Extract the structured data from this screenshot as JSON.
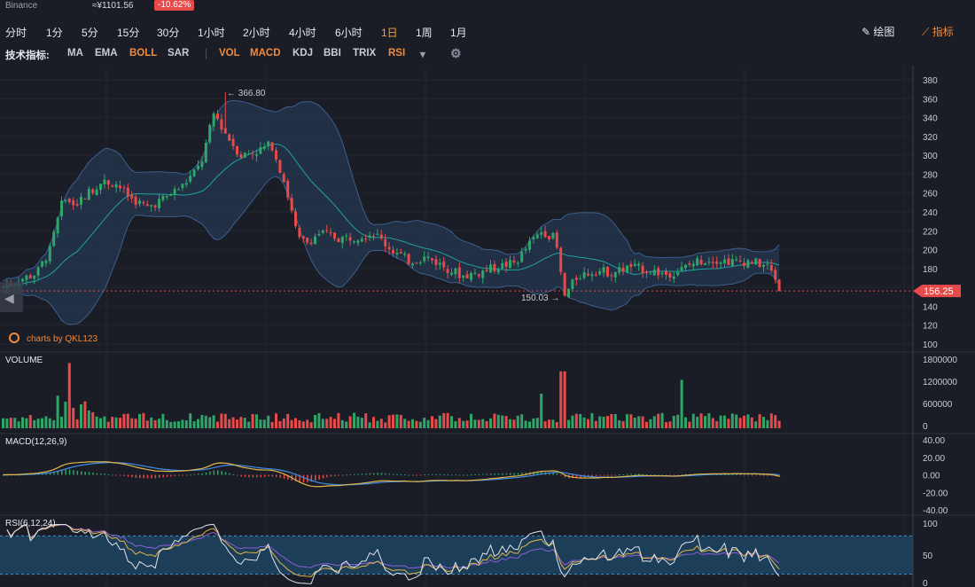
{
  "header": {
    "exchange": "Binance",
    "price": "≈¥1101.56",
    "change": "-10.62%"
  },
  "timeframes": [
    {
      "label": "分时"
    },
    {
      "label": "1分"
    },
    {
      "label": "5分"
    },
    {
      "label": "15分"
    },
    {
      "label": "30分"
    },
    {
      "label": "1小时"
    },
    {
      "label": "2小时"
    },
    {
      "label": "4小时"
    },
    {
      "label": "6小时"
    },
    {
      "label": "1日",
      "active": true
    },
    {
      "label": "1周"
    },
    {
      "label": "1月"
    }
  ],
  "tools": {
    "draw": "绘图",
    "indicators": "指标"
  },
  "indicator_bar": {
    "label": "技术指标:",
    "main": [
      {
        "label": "MA"
      },
      {
        "label": "EMA"
      },
      {
        "label": "BOLL",
        "on": true
      },
      {
        "label": "SAR"
      }
    ],
    "sub": [
      {
        "label": "VOL",
        "on": true
      },
      {
        "label": "MACD",
        "on": true
      },
      {
        "label": "KDJ"
      },
      {
        "label": "BBI"
      },
      {
        "label": "TRIX"
      },
      {
        "label": "RSI",
        "on": true
      }
    ]
  },
  "colors": {
    "up": "#2fa56a",
    "down": "#e84a4a",
    "boll_fill": "#27405f",
    "boll_mid": "#1fa3a3",
    "macd_dif": "#e2b54a",
    "macd_dea": "#3e8ee8",
    "rsi6": "#dfe3ea",
    "rsi12": "#e2b54a",
    "rsi24": "#8a5fd8"
  },
  "panels": {
    "main_axis": [
      "380",
      "360",
      "340",
      "320",
      "300",
      "280",
      "260",
      "240",
      "220",
      "200",
      "180",
      "160",
      "140",
      "120",
      "100"
    ],
    "high_label": "366.80",
    "low_label": "150.03",
    "last_price": "156.25",
    "watermark": "charts by QKL123",
    "volume_title": "VOLUME",
    "volume_axis": [
      "1800000",
      "1200000",
      "600000",
      "0"
    ],
    "macd_title": "MACD(12,26,9)",
    "macd_axis": [
      "40.00",
      "20.00",
      "0.00",
      "-20.00",
      "-40.00"
    ],
    "rsi_title": "RSI(6,12,24)",
    "rsi_axis": [
      "100",
      "50",
      "0"
    ]
  },
  "chart_data": {
    "type": "candlestick",
    "y_range": [
      100,
      380
    ],
    "high": 366.8,
    "low": 150.03,
    "last": 156.25,
    "close_path_keypoints": [
      [
        0,
        160
      ],
      [
        20,
        168
      ],
      [
        40,
        175
      ],
      [
        55,
        200
      ],
      [
        70,
        255
      ],
      [
        85,
        250
      ],
      [
        100,
        262
      ],
      [
        115,
        272
      ],
      [
        130,
        270
      ],
      [
        145,
        255
      ],
      [
        165,
        245
      ],
      [
        185,
        255
      ],
      [
        205,
        268
      ],
      [
        225,
        290
      ],
      [
        240,
        345
      ],
      [
        255,
        320
      ],
      [
        270,
        300
      ],
      [
        290,
        305
      ],
      [
        305,
        312
      ],
      [
        320,
        270
      ],
      [
        335,
        210
      ],
      [
        345,
        208
      ],
      [
        360,
        218
      ],
      [
        380,
        212
      ],
      [
        400,
        214
      ],
      [
        420,
        218
      ],
      [
        440,
        200
      ],
      [
        460,
        188
      ],
      [
        480,
        192
      ],
      [
        500,
        182
      ],
      [
        520,
        172
      ],
      [
        540,
        176
      ],
      [
        560,
        182
      ],
      [
        580,
        186
      ],
      [
        595,
        205
      ],
      [
        610,
        220
      ],
      [
        625,
        212
      ],
      [
        635,
        150
      ],
      [
        650,
        172
      ],
      [
        670,
        178
      ],
      [
        690,
        176
      ],
      [
        710,
        182
      ],
      [
        730,
        178
      ],
      [
        750,
        174
      ],
      [
        765,
        178
      ],
      [
        785,
        188
      ],
      [
        805,
        190
      ],
      [
        825,
        187
      ],
      [
        845,
        188
      ],
      [
        865,
        182
      ],
      [
        880,
        160
      ]
    ]
  }
}
